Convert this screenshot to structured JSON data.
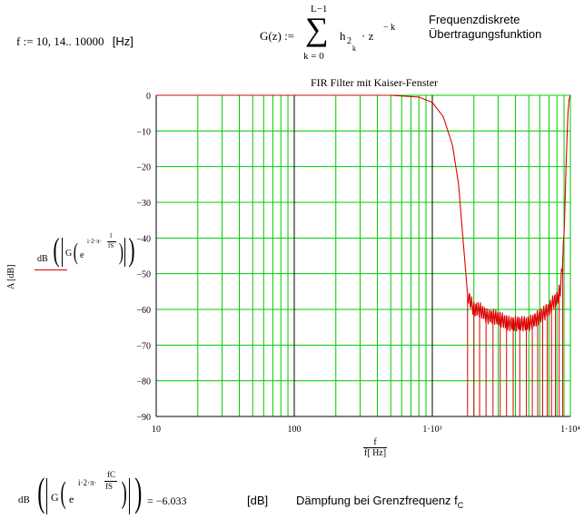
{
  "top": {
    "f_def": "f := 10, 14.. 10000",
    "f_unit": "[Hz]",
    "g_lhs": "G(z) :=",
    "sum_upper": "L−1",
    "sum_lower": "k = 0",
    "sum_symbol": "∑",
    "sum_term": "h",
    "sum_sub": "2",
    "sum_subsub": "k",
    "z_term": "· z",
    "z_exp": "− k",
    "desc_line1": "Frequenzdiskrete",
    "desc_line2": "Übertragungsfunktion"
  },
  "ylabel_parts": {
    "a": "A  [dB]",
    "db": "dB",
    "g": "G",
    "e": "e",
    "exp": "i·2·π·",
    "num": "f",
    "den": "fS"
  },
  "xlabel_parts": {
    "num": "f",
    "den": "f[ Hz]"
  },
  "bottom": {
    "db": "dB",
    "g": "G",
    "e": "e",
    "exp": "i·2·π·",
    "num": "fC",
    "den": "fS",
    "result": "= −6.033",
    "unit": "[dB]",
    "desc": "Dämpfung bei Grenzfrequenz f",
    "desc_sub": "C"
  },
  "chart_data": {
    "type": "line",
    "title": "FIR Filter mit Kaiser-Fenster",
    "xlabel": "f / f[ Hz]",
    "ylabel": "A [dB]",
    "x_scale": "log",
    "xlim": [
      10,
      10000
    ],
    "ylim": [
      -90,
      0
    ],
    "x_tick_labels": [
      "10",
      "100",
      "1·10³",
      "1·10⁴"
    ],
    "y_ticks": [
      0,
      -10,
      -20,
      -30,
      -40,
      -50,
      -60,
      -70,
      -80,
      -90
    ],
    "grid": true,
    "grid_color": "#00cc00",
    "line_color": "#dd0000",
    "series": [
      {
        "x": [
          10,
          500,
          800,
          1000,
          1200,
          1400,
          1550,
          1650,
          1750,
          1800,
          1900,
          2000,
          2200,
          2500,
          2800,
          3200,
          3600,
          4000,
          4500,
          5000,
          5500,
          6000,
          6500,
          7000,
          7500,
          8000,
          8500,
          9000,
          9300,
          9600,
          9800,
          10000
        ],
        "values": [
          0,
          0,
          -0.5,
          -2,
          -6,
          -14,
          -25,
          -38,
          -50,
          -56,
          -58,
          -60,
          -60,
          -62,
          -62,
          -63,
          -64,
          -64,
          -64,
          -64,
          -63,
          -62,
          -61,
          -60,
          -58,
          -57,
          -54,
          -40,
          -20,
          -5,
          -1,
          0
        ]
      }
    ],
    "notch_frequencies": [
      1800,
      2000,
      2200,
      2450,
      2750,
      3100,
      3450,
      3850,
      4300,
      4800,
      5300,
      5800,
      6300,
      6800,
      7300,
      7800,
      8300,
      8800
    ]
  }
}
